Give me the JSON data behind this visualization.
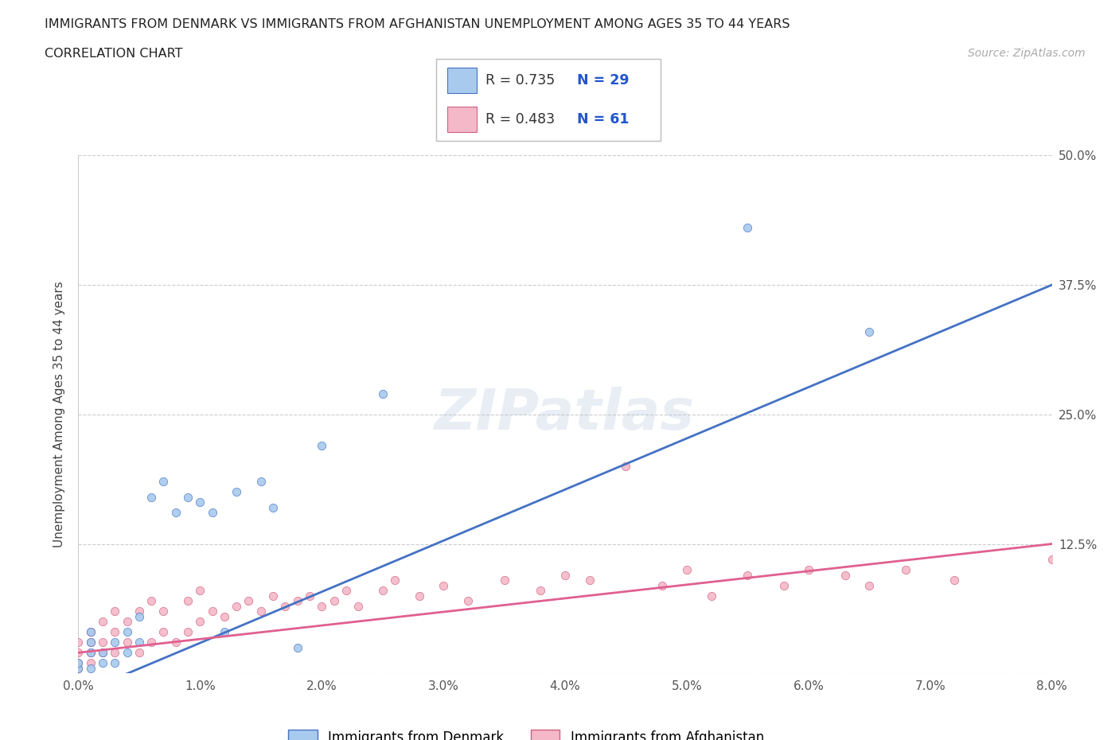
{
  "title_line1": "IMMIGRANTS FROM DENMARK VS IMMIGRANTS FROM AFGHANISTAN UNEMPLOYMENT AMONG AGES 35 TO 44 YEARS",
  "title_line2": "CORRELATION CHART",
  "source_text": "Source: ZipAtlas.com",
  "ylabel": "Unemployment Among Ages 35 to 44 years",
  "xlim": [
    0.0,
    0.08
  ],
  "ylim": [
    0.0,
    0.5
  ],
  "xtick_vals": [
    0.0,
    0.01,
    0.02,
    0.03,
    0.04,
    0.05,
    0.06,
    0.07,
    0.08
  ],
  "xticklabels": [
    "0.0%",
    "1.0%",
    "2.0%",
    "3.0%",
    "4.0%",
    "5.0%",
    "6.0%",
    "7.0%",
    "8.0%"
  ],
  "ytick_vals": [
    0.0,
    0.125,
    0.25,
    0.375,
    0.5
  ],
  "yticklabels_right": [
    "",
    "12.5%",
    "25.0%",
    "37.5%",
    "50.0%"
  ],
  "denmark_scatter_color": "#a8caee",
  "denmark_scatter_edge": "#4472c4",
  "denmark_line_color": "#4472c4",
  "afghanistan_scatter_color": "#f4b8c8",
  "afghanistan_scatter_edge": "#d06080",
  "afghanistan_line_color": "#e06090",
  "denmark_R": 0.735,
  "denmark_N": 29,
  "afghanistan_R": 0.483,
  "afghanistan_N": 61,
  "grid_color": "#cccccc",
  "bg_color": "#ffffff",
  "legend_label_denmark": "Immigrants from Denmark",
  "legend_label_afghanistan": "Immigrants from Afghanistan",
  "dk_x": [
    0.0,
    0.0,
    0.001,
    0.001,
    0.001,
    0.001,
    0.002,
    0.002,
    0.003,
    0.003,
    0.004,
    0.004,
    0.005,
    0.005,
    0.006,
    0.007,
    0.008,
    0.009,
    0.01,
    0.011,
    0.012,
    0.013,
    0.015,
    0.016,
    0.018,
    0.02,
    0.025,
    0.055,
    0.065
  ],
  "dk_y": [
    0.005,
    0.01,
    0.02,
    0.03,
    0.04,
    0.005,
    0.01,
    0.02,
    0.01,
    0.03,
    0.02,
    0.04,
    0.03,
    0.055,
    0.17,
    0.185,
    0.155,
    0.17,
    0.165,
    0.155,
    0.04,
    0.175,
    0.185,
    0.16,
    0.025,
    0.22,
    0.27,
    0.43,
    0.33
  ],
  "af_x": [
    0.0,
    0.0,
    0.0,
    0.0,
    0.001,
    0.001,
    0.001,
    0.001,
    0.002,
    0.002,
    0.002,
    0.003,
    0.003,
    0.003,
    0.004,
    0.004,
    0.005,
    0.005,
    0.006,
    0.006,
    0.007,
    0.007,
    0.008,
    0.009,
    0.009,
    0.01,
    0.01,
    0.011,
    0.012,
    0.013,
    0.014,
    0.015,
    0.016,
    0.017,
    0.018,
    0.019,
    0.02,
    0.021,
    0.022,
    0.023,
    0.025,
    0.026,
    0.028,
    0.03,
    0.032,
    0.035,
    0.038,
    0.04,
    0.042,
    0.045,
    0.048,
    0.05,
    0.052,
    0.055,
    0.058,
    0.06,
    0.063,
    0.065,
    0.068,
    0.072,
    0.08
  ],
  "af_y": [
    0.005,
    0.01,
    0.02,
    0.03,
    0.01,
    0.02,
    0.03,
    0.04,
    0.02,
    0.03,
    0.05,
    0.02,
    0.04,
    0.06,
    0.03,
    0.05,
    0.02,
    0.06,
    0.03,
    0.07,
    0.04,
    0.06,
    0.03,
    0.04,
    0.07,
    0.05,
    0.08,
    0.06,
    0.055,
    0.065,
    0.07,
    0.06,
    0.075,
    0.065,
    0.07,
    0.075,
    0.065,
    0.07,
    0.08,
    0.065,
    0.08,
    0.09,
    0.075,
    0.085,
    0.07,
    0.09,
    0.08,
    0.095,
    0.09,
    0.2,
    0.085,
    0.1,
    0.075,
    0.095,
    0.085,
    0.1,
    0.095,
    0.085,
    0.1,
    0.09,
    0.11
  ]
}
